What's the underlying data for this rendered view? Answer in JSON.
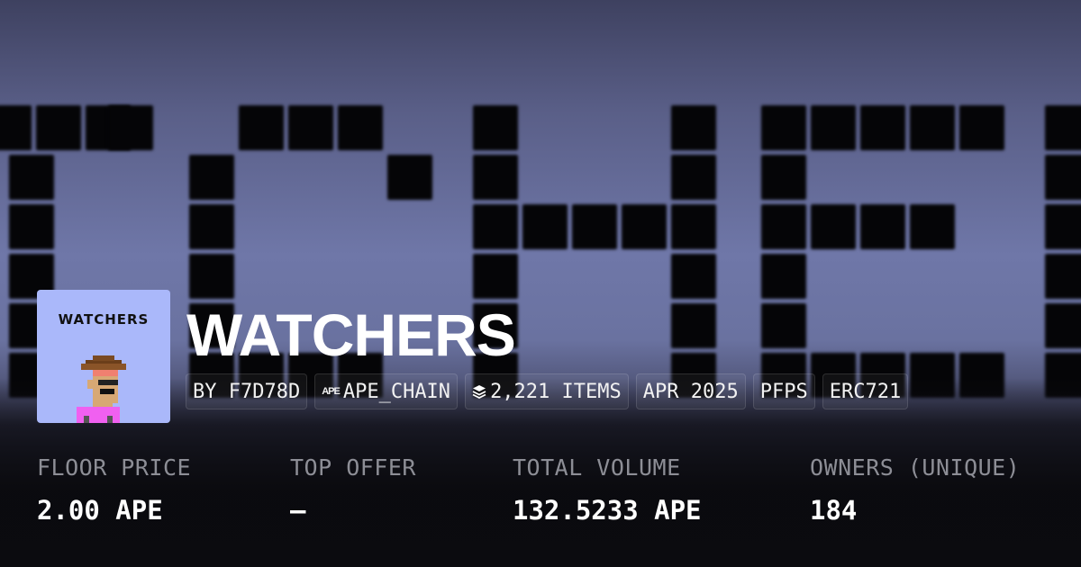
{
  "collection": {
    "name": "WATCHERS",
    "avatar_label": "WATCHERS",
    "chips": [
      {
        "label": "BY F7D78D",
        "icon": null
      },
      {
        "label": "APE_CHAIN",
        "icon": "ape-chain-icon",
        "icon_text": "APE"
      },
      {
        "label": "2,221 ITEMS",
        "icon": "layers-icon"
      },
      {
        "label": "APR 2025",
        "icon": null
      },
      {
        "label": "PFPS",
        "icon": null
      },
      {
        "label": "ERC721",
        "icon": null
      }
    ]
  },
  "stats": [
    {
      "label": "FLOOR PRICE",
      "value": "2.00 APE"
    },
    {
      "label": "TOP OFFER",
      "value": "—"
    },
    {
      "label": "TOTAL VOLUME",
      "value": "132.5233 APE"
    },
    {
      "label": "OWNERS (UNIQUE)",
      "value": "184"
    }
  ],
  "colors": {
    "avatar_bg": "#aab8fa",
    "banner_mid": "#6f77a8",
    "label": "#8d8e96"
  }
}
